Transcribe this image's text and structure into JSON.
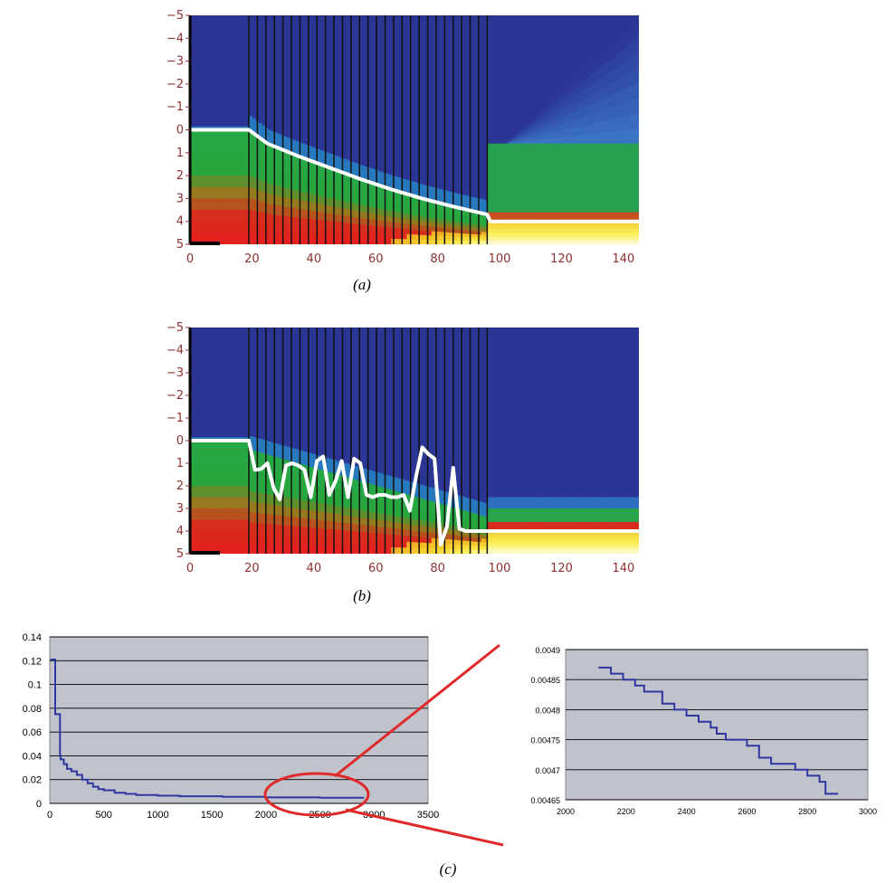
{
  "panel_labels": [
    "(a)",
    "(b)",
    "(c)"
  ],
  "colors": {
    "water": "#2b3593",
    "line": "#ffffff",
    "sweep_line": "#111111",
    "plot_bg_c": "#c0c3cc",
    "series_c": "#2f37a0",
    "zoom_circle": "#e02a2a"
  },
  "chart_data": [
    {
      "type": "heatmap",
      "panel": "(a)",
      "xlim": [
        0,
        145
      ],
      "ylim": [
        -5,
        5
      ],
      "y_inverted": true,
      "x_ticks": [
        0,
        20,
        40,
        60,
        80,
        100,
        120,
        140
      ],
      "y_ticks": [
        -5,
        -4,
        -3,
        -2,
        -1,
        0,
        1,
        2,
        3,
        4,
        5
      ],
      "y_tick_labels": [
        "−5",
        "−4",
        "−3",
        "−2",
        "−1",
        "0",
        "1",
        "2",
        "3",
        "4",
        "5"
      ],
      "vertical_lines_x_range": [
        19,
        96
      ],
      "vertical_line_count": 29,
      "profile_line": {
        "x": [
          0,
          19,
          25,
          35,
          45,
          55,
          65,
          75,
          85,
          96,
          97,
          145
        ],
        "y": [
          0,
          0,
          0.6,
          1.15,
          1.65,
          2.15,
          2.6,
          3.0,
          3.35,
          3.7,
          4.0,
          4.0
        ]
      }
    },
    {
      "type": "heatmap",
      "panel": "(b)",
      "xlim": [
        0,
        145
      ],
      "ylim": [
        -5,
        5
      ],
      "y_inverted": true,
      "x_ticks": [
        0,
        20,
        40,
        60,
        80,
        100,
        120,
        140
      ],
      "y_ticks": [
        -5,
        -4,
        -3,
        -2,
        -1,
        0,
        1,
        2,
        3,
        4,
        5
      ],
      "y_tick_labels": [
        "−5",
        "−4",
        "−3",
        "−2",
        "−1",
        "0",
        "1",
        "2",
        "3",
        "4",
        "5"
      ],
      "vertical_lines_x_range": [
        19,
        96
      ],
      "vertical_line_count": 29,
      "profile_line": {
        "x": [
          0,
          19,
          21,
          23,
          25,
          27,
          29,
          31,
          33,
          35,
          37,
          39,
          41,
          43,
          45,
          47,
          49,
          51,
          53,
          55,
          57,
          59,
          61,
          63,
          65,
          67,
          69,
          71,
          73,
          75,
          77,
          79,
          81,
          83,
          85,
          87,
          89,
          91,
          93,
          95,
          97,
          145
        ],
        "y": [
          0,
          0,
          1.3,
          1.25,
          1.0,
          2.1,
          2.6,
          1.1,
          1.0,
          1.1,
          1.3,
          2.5,
          0.9,
          0.7,
          2.4,
          1.8,
          0.9,
          2.5,
          0.8,
          1.0,
          2.4,
          2.5,
          2.4,
          2.4,
          2.5,
          2.5,
          2.4,
          3.1,
          1.6,
          0.3,
          0.6,
          0.8,
          4.6,
          3.8,
          1.2,
          3.9,
          4.0,
          4.0,
          4.0,
          4.0,
          4.0,
          4.0
        ]
      }
    },
    {
      "type": "line",
      "panel": "(c)",
      "xlim": [
        0,
        3500
      ],
      "ylim": [
        0,
        0.14
      ],
      "x_ticks": [
        0,
        500,
        1000,
        1500,
        2000,
        2500,
        3000,
        3500
      ],
      "y_ticks": [
        0,
        0.02,
        0.04,
        0.06,
        0.08,
        0.1,
        0.12,
        0.14
      ],
      "y_tick_labels": [
        "0",
        "0.02",
        "0.04",
        "0.06",
        "0.08",
        "0.1",
        "0.12",
        "0.14"
      ],
      "grid": "horizontal",
      "x": [
        10,
        40,
        50,
        55,
        85,
        95,
        100,
        130,
        160,
        200,
        250,
        300,
        350,
        400,
        450,
        500,
        600,
        700,
        800,
        1000,
        1200,
        1600,
        2000,
        2500,
        2900
      ],
      "y": [
        0.121,
        0.121,
        0.075,
        0.075,
        0.075,
        0.04,
        0.037,
        0.033,
        0.029,
        0.027,
        0.024,
        0.02,
        0.017,
        0.014,
        0.012,
        0.011,
        0.009,
        0.008,
        0.007,
        0.0065,
        0.006,
        0.0055,
        0.005,
        0.0048,
        0.0047
      ]
    },
    {
      "type": "line",
      "panel": "(c) zoom",
      "xlim": [
        2000,
        3000
      ],
      "ylim": [
        0.00465,
        0.0049
      ],
      "x_ticks": [
        2000,
        2200,
        2400,
        2600,
        2800,
        3000
      ],
      "y_ticks": [
        0.00465,
        0.0047,
        0.00475,
        0.0048,
        0.00485,
        0.0049
      ],
      "y_tick_labels": [
        "0.00465",
        "0.0047",
        "0.00475",
        "0.0048",
        "0.00485",
        "0.0049"
      ],
      "grid": "horizontal",
      "x": [
        2110,
        2150,
        2170,
        2190,
        2230,
        2260,
        2280,
        2320,
        2360,
        2400,
        2440,
        2480,
        2500,
        2530,
        2560,
        2600,
        2640,
        2680,
        2720,
        2760,
        2800,
        2840,
        2860,
        2900
      ],
      "y": [
        0.00487,
        0.00486,
        0.00486,
        0.00485,
        0.00484,
        0.00483,
        0.00483,
        0.00481,
        0.0048,
        0.00479,
        0.00478,
        0.00477,
        0.00476,
        0.00475,
        0.00475,
        0.00474,
        0.00472,
        0.00471,
        0.00471,
        0.0047,
        0.00469,
        0.00468,
        0.00466,
        0.00466
      ]
    }
  ]
}
